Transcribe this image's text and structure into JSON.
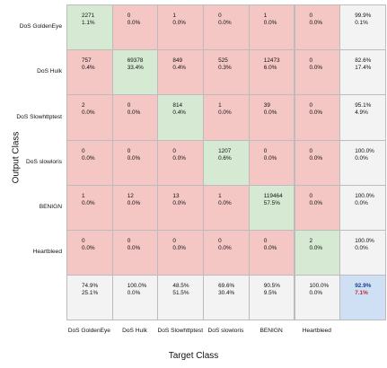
{
  "chart_data": {
    "type": "heatmap",
    "title": "",
    "xlabel": "Target Class",
    "ylabel": "Output Class",
    "row_labels": [
      "DoS GoldenEye",
      "DoS Hulk",
      "DoS Slowhttptest",
      "DoS slowloris",
      "BENIGN",
      "Heartbleed"
    ],
    "col_labels": [
      "DoS GoldenEye",
      "DoS Hulk",
      "DoS Slowhttptest",
      "DoS slowloris",
      "BENIGN",
      "Heartbleed"
    ],
    "matrix": [
      [
        {
          "count": "2271",
          "pct": "1.1%"
        },
        {
          "count": "0",
          "pct": "0.0%"
        },
        {
          "count": "1",
          "pct": "0.0%"
        },
        {
          "count": "0",
          "pct": "0.0%"
        },
        {
          "count": "1",
          "pct": "0.0%"
        },
        {
          "count": "0",
          "pct": "0.0%"
        }
      ],
      [
        {
          "count": "757",
          "pct": "0.4%"
        },
        {
          "count": "69378",
          "pct": "33.4%"
        },
        {
          "count": "849",
          "pct": "0.4%"
        },
        {
          "count": "525",
          "pct": "0.3%"
        },
        {
          "count": "12473",
          "pct": "6.0%"
        },
        {
          "count": "0",
          "pct": "0.0%"
        }
      ],
      [
        {
          "count": "2",
          "pct": "0.0%"
        },
        {
          "count": "0",
          "pct": "0.0%"
        },
        {
          "count": "814",
          "pct": "0.4%"
        },
        {
          "count": "1",
          "pct": "0.0%"
        },
        {
          "count": "39",
          "pct": "0.0%"
        },
        {
          "count": "0",
          "pct": "0.0%"
        }
      ],
      [
        {
          "count": "0",
          "pct": "0.0%"
        },
        {
          "count": "0",
          "pct": "0.0%"
        },
        {
          "count": "0",
          "pct": "0.0%"
        },
        {
          "count": "1207",
          "pct": "0.6%"
        },
        {
          "count": "0",
          "pct": "0.0%"
        },
        {
          "count": "0",
          "pct": "0.0%"
        }
      ],
      [
        {
          "count": "1",
          "pct": "0.0%"
        },
        {
          "count": "12",
          "pct": "0.0%"
        },
        {
          "count": "13",
          "pct": "0.0%"
        },
        {
          "count": "1",
          "pct": "0.0%"
        },
        {
          "count": "119464",
          "pct": "57.5%"
        },
        {
          "count": "0",
          "pct": "0.0%"
        }
      ],
      [
        {
          "count": "0",
          "pct": "0.0%"
        },
        {
          "count": "0",
          "pct": "0.0%"
        },
        {
          "count": "0",
          "pct": "0.0%"
        },
        {
          "count": "0",
          "pct": "0.0%"
        },
        {
          "count": "0",
          "pct": "0.0%"
        },
        {
          "count": "2",
          "pct": "0.0%"
        }
      ]
    ],
    "row_summary": [
      {
        "correct": "99.9%",
        "error": "0.1%"
      },
      {
        "correct": "82.6%",
        "error": "17.4%"
      },
      {
        "correct": "95.1%",
        "error": "4.9%"
      },
      {
        "correct": "100.0%",
        "error": "0.0%"
      },
      {
        "correct": "100.0%",
        "error": "0.0%"
      },
      {
        "correct": "100.0%",
        "error": "0.0%"
      }
    ],
    "col_summary": [
      {
        "correct": "74.9%",
        "error": "25.1%"
      },
      {
        "correct": "100.0%",
        "error": "0.0%"
      },
      {
        "correct": "48.5%",
        "error": "51.5%"
      },
      {
        "correct": "69.6%",
        "error": "30.4%"
      },
      {
        "correct": "90.5%",
        "error": "9.5%"
      },
      {
        "correct": "100.0%",
        "error": "0.0%"
      }
    ],
    "overall": {
      "correct": "92.9%",
      "error": "7.1%"
    },
    "colors": {
      "diagonal": "#d6ead3",
      "off_diagonal": "#f4c7c4",
      "summary": "#f3f3f3",
      "overall": "#cfe0f5",
      "overall_correct_text": "#1f3f8a",
      "overall_error_text": "#b8312f"
    },
    "legend": "none",
    "grid": true
  }
}
